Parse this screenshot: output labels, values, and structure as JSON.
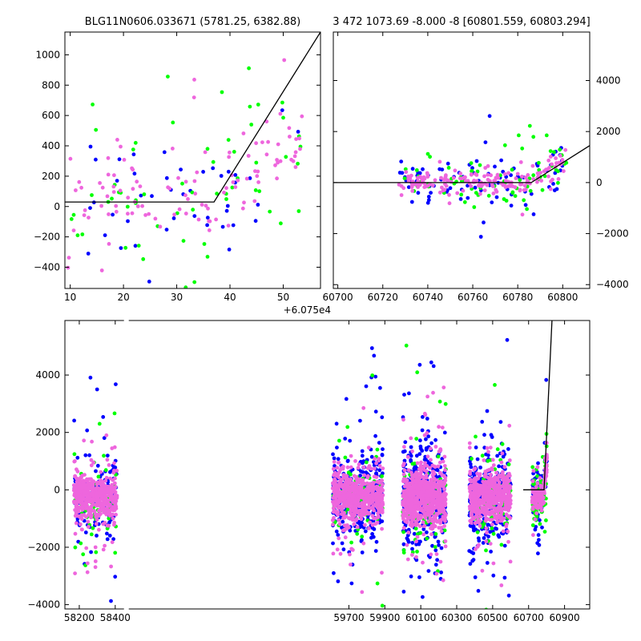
{
  "chart_data": [
    {
      "type": "scatter",
      "panel": "top-left",
      "title": "BLG11N0606.033671 (5781.25, 6382.88)",
      "xlabel": "",
      "ylabel": "",
      "xlim": [
        9,
        57
      ],
      "ylim": [
        -540,
        1150
      ],
      "x_offset_label": "",
      "y_axis_side": "left",
      "grid": false,
      "xticks": [
        10,
        20,
        30,
        40,
        50
      ],
      "yticks": [
        -400,
        -200,
        0,
        200,
        400,
        600,
        800,
        1000
      ],
      "series_colors": [
        "#0000ff",
        "#00ff00",
        "#ee66dd"
      ],
      "n_points": [
        45,
        60,
        110
      ],
      "x_range": [
        9.5,
        54
      ],
      "trend_x_start": 37,
      "scatter_center": 60,
      "scatter_slope": 27,
      "scatter_sigma": 230,
      "model_line": {
        "x": [
          9,
          37,
          57
        ],
        "y": [
          30,
          30,
          1150
        ]
      }
    },
    {
      "type": "scatter",
      "panel": "top-right",
      "title": "3 472 1073.69 -8.000 -8 [60801.559, 60803.294]",
      "xlabel": "",
      "ylabel": "",
      "xlim": [
        60698,
        60812
      ],
      "ylim": [
        -4150,
        5900
      ],
      "x_offset_label": "+6.075e4",
      "y_axis_side": "right",
      "grid": false,
      "xticks": [
        60700,
        60720,
        60740,
        60760,
        60780,
        60800
      ],
      "yticks": [
        -4000,
        -2000,
        0,
        2000,
        4000
      ],
      "series_colors": [
        "#0000ff",
        "#00ff00",
        "#ee66dd"
      ],
      "n_points": [
        90,
        80,
        170
      ],
      "x_range": [
        60727,
        60802
      ],
      "trend_x_start": 60786,
      "scatter_center": 0,
      "scatter_slope": 55,
      "scatter_sigma": 420,
      "model_line": {
        "x": [
          60698,
          60786,
          60812
        ],
        "y": [
          0,
          0,
          1450
        ]
      }
    },
    {
      "type": "scatter",
      "panel": "bottom",
      "title": "",
      "xlabel": "",
      "ylabel": "",
      "xlim": [
        58120,
        61040
      ],
      "ylim": [
        -4150,
        5900
      ],
      "x_offset_label": "",
      "y_axis_side": "left",
      "grid": false,
      "xticks": [
        58200,
        58400,
        59700,
        59900,
        60100,
        60300,
        60500,
        60700,
        60900
      ],
      "yticks": [
        -4000,
        -2000,
        0,
        2000,
        4000
      ],
      "gap": {
        "x": 58462
      },
      "series_colors": [
        "#0000ff",
        "#00ff00",
        "#ee66dd"
      ],
      "seasons": [
        {
          "x_range": [
            58170,
            58410
          ],
          "n": [
            140,
            60,
            480
          ],
          "sigma": 700
        },
        {
          "x_range": [
            59610,
            59890
          ],
          "n": [
            320,
            70,
            560
          ],
          "sigma": 750
        },
        {
          "x_range": [
            60000,
            60240
          ],
          "n": [
            360,
            90,
            640
          ],
          "sigma": 850
        },
        {
          "x_range": [
            60370,
            60600
          ],
          "n": [
            330,
            80,
            560
          ],
          "sigma": 750
        },
        {
          "x_range": [
            60720,
            60802
          ],
          "n": [
            90,
            80,
            170
          ],
          "sigma": 400
        }
      ],
      "scatter_center": -250,
      "model_line": {
        "x": [
          60670,
          60786,
          60830
        ],
        "y": [
          0,
          0,
          5900
        ]
      }
    }
  ]
}
